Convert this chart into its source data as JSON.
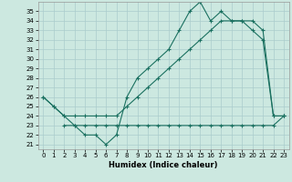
{
  "title": "",
  "xlabel": "Humidex (Indice chaleur)",
  "bg_color": "#cce8e0",
  "grid_color": "#aacccc",
  "line_color": "#1a7060",
  "xlim": [
    -0.5,
    23.5
  ],
  "ylim": [
    20.5,
    36.0
  ],
  "xticks": [
    0,
    1,
    2,
    3,
    4,
    5,
    6,
    7,
    8,
    9,
    10,
    11,
    12,
    13,
    14,
    15,
    16,
    17,
    18,
    19,
    20,
    21,
    22,
    23
  ],
  "yticks": [
    21,
    22,
    23,
    24,
    25,
    26,
    27,
    28,
    29,
    30,
    31,
    32,
    33,
    34,
    35
  ],
  "line1_x": [
    0,
    1,
    2,
    3,
    4,
    5,
    6,
    7,
    8,
    9,
    10,
    11,
    12,
    13,
    14,
    15,
    16,
    17,
    18,
    19,
    20,
    21,
    22,
    23
  ],
  "line1_y": [
    26,
    25,
    24,
    23,
    22,
    22,
    21,
    22,
    26,
    28,
    29,
    30,
    31,
    33,
    35,
    36,
    34,
    35,
    34,
    34,
    33,
    32,
    24,
    24
  ],
  "line2_x": [
    0,
    1,
    2,
    3,
    4,
    5,
    6,
    7,
    8,
    9,
    10,
    11,
    12,
    13,
    14,
    15,
    16,
    17,
    18,
    19,
    20,
    21,
    22,
    23
  ],
  "line2_y": [
    26,
    25,
    24,
    24,
    24,
    24,
    24,
    24,
    25,
    26,
    27,
    28,
    29,
    30,
    31,
    32,
    33,
    34,
    34,
    34,
    34,
    33,
    24,
    24
  ],
  "line3_x": [
    2,
    3,
    4,
    5,
    6,
    7,
    8,
    9,
    10,
    11,
    12,
    13,
    14,
    15,
    16,
    17,
    18,
    19,
    20,
    21,
    22,
    23
  ],
  "line3_y": [
    23,
    23,
    23,
    23,
    23,
    23,
    23,
    23,
    23,
    23,
    23,
    23,
    23,
    23,
    23,
    23,
    23,
    23,
    23,
    23,
    23,
    24
  ],
  "xlabel_fontsize": 6.0,
  "tick_fontsize": 5.0
}
